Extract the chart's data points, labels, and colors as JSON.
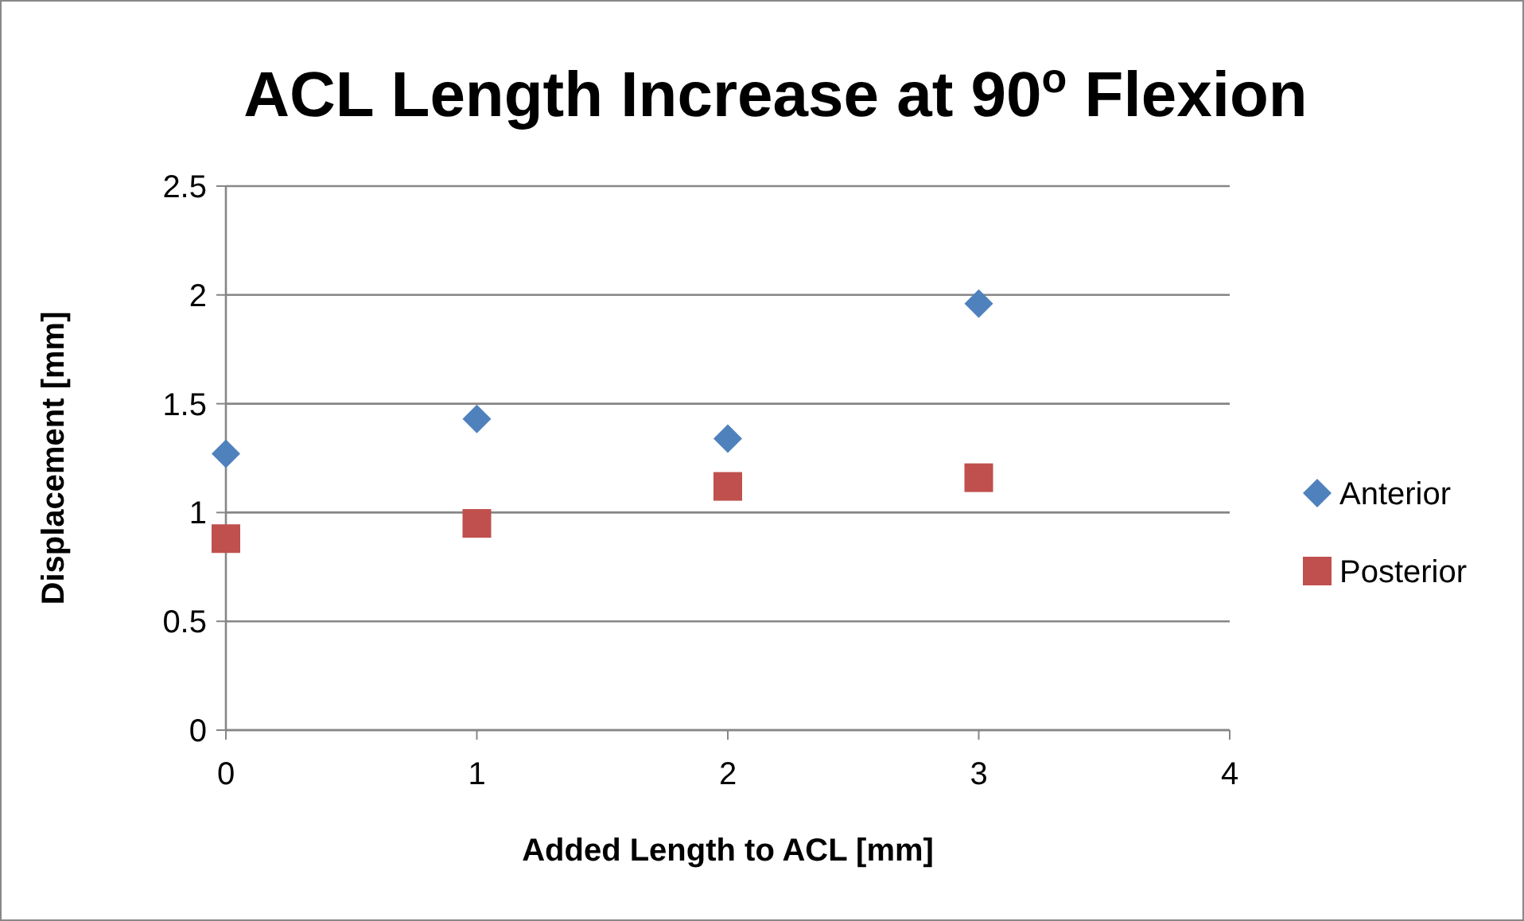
{
  "chart_data": {
    "type": "scatter",
    "title": "ACL Length Increase at 90$^{o}$ Flexion",
    "xlabel": "Added Length to ACL [mm]",
    "ylabel": "Displacement [mm]",
    "xlim": [
      0,
      4
    ],
    "xticks": [
      0,
      1,
      2,
      3,
      4
    ],
    "ylim": [
      0,
      2.5
    ],
    "yticks": [
      0,
      0.5,
      1,
      1.5,
      2,
      2.5
    ],
    "grid": "y",
    "legend": "right",
    "series": [
      {
        "name": "Anterior",
        "color": "#4f81bd",
        "marker": "diamond",
        "x": [
          0,
          1,
          2,
          3
        ],
        "values": [
          1.27,
          1.43,
          1.34,
          1.96
        ]
      },
      {
        "name": "Posterior",
        "color": "#c0504d",
        "marker": "square",
        "x": [
          0,
          1,
          2,
          3
        ],
        "values": [
          0.88,
          0.95,
          1.12,
          1.16
        ]
      }
    ]
  }
}
